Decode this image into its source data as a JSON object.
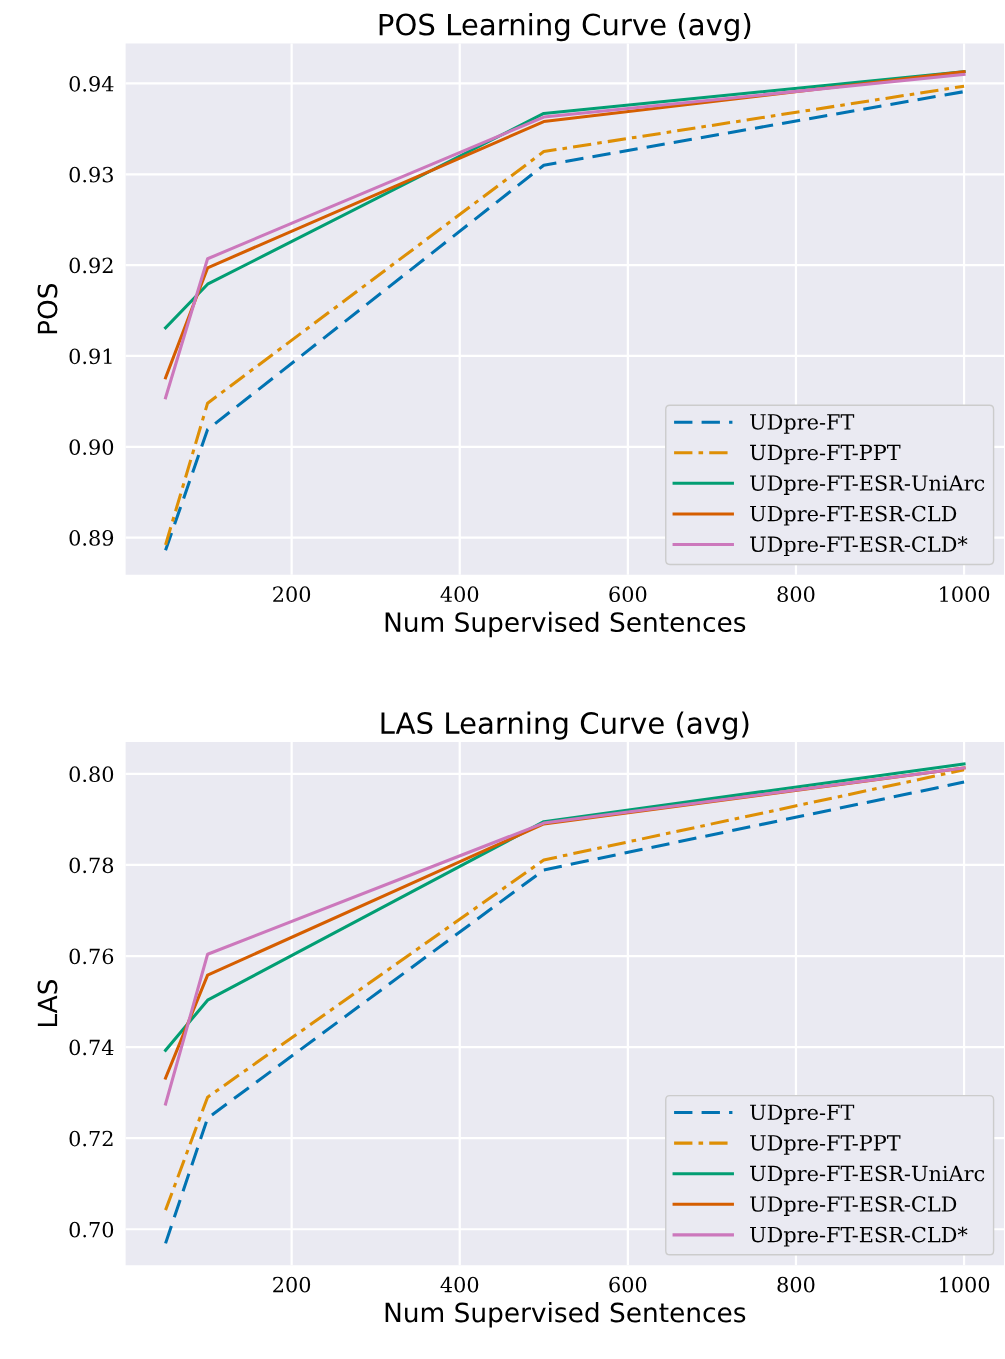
{
  "chart_data": [
    {
      "type": "line",
      "title": "POS Learning Curve (avg)",
      "xlabel": "Num Supervised Sentences",
      "ylabel": "POS",
      "x": [
        50,
        100,
        500,
        1000
      ],
      "xlim": [
        2.5,
        1047.5
      ],
      "xticks": [
        200,
        400,
        600,
        800,
        1000
      ],
      "ylim": [
        0.8859,
        0.9444
      ],
      "yticks": [
        {
          "value": 0.89,
          "label": "0.89"
        },
        {
          "value": 0.9,
          "label": "0.90"
        },
        {
          "value": 0.91,
          "label": "0.91"
        },
        {
          "value": 0.92,
          "label": "0.92"
        },
        {
          "value": 0.93,
          "label": "0.93"
        },
        {
          "value": 0.94,
          "label": "0.94"
        }
      ],
      "grid": true,
      "legend": "lower right",
      "marker": "none",
      "series": [
        {
          "name": "UDpre-FT",
          "color": "#0173b2",
          "line_style": "dashed",
          "values": [
            0.8886,
            0.9019,
            0.931,
            0.9391
          ]
        },
        {
          "name": "UDpre-FT-PPT",
          "color": "#de8f05",
          "line_style": "dashdot",
          "values": [
            0.8892,
            0.9048,
            0.9325,
            0.9397
          ]
        },
        {
          "name": "UDpre-FT-ESR-UniArc",
          "color": "#029e73",
          "line_style": "solid",
          "values": [
            0.9131,
            0.9179,
            0.9367,
            0.9413
          ]
        },
        {
          "name": "UDpre-FT-ESR-CLD",
          "color": "#d55e00",
          "line_style": "solid",
          "values": [
            0.9076,
            0.9197,
            0.9358,
            0.9413
          ]
        },
        {
          "name": "UDpre-FT-ESR-CLD*",
          "color": "#cc78bc",
          "line_style": "solid",
          "values": [
            0.9054,
            0.9207,
            0.9363,
            0.941
          ]
        }
      ]
    },
    {
      "type": "line",
      "title": "LAS Learning Curve (avg)",
      "xlabel": "Num Supervised Sentences",
      "ylabel": "LAS",
      "x": [
        50,
        100,
        500,
        1000
      ],
      "xlim": [
        2.5,
        1047.5
      ],
      "xticks": [
        200,
        400,
        600,
        800,
        1000
      ],
      "ylim": [
        0.6921,
        0.807
      ],
      "yticks": [
        {
          "value": 0.7,
          "label": "0.70"
        },
        {
          "value": 0.72,
          "label": "0.72"
        },
        {
          "value": 0.74,
          "label": "0.74"
        },
        {
          "value": 0.76,
          "label": "0.76"
        },
        {
          "value": 0.78,
          "label": "0.78"
        },
        {
          "value": 0.8,
          "label": "0.80"
        }
      ],
      "grid": true,
      "legend": "lower right",
      "marker": "none",
      "series": [
        {
          "name": "UDpre-FT",
          "color": "#0173b2",
          "line_style": "dashed",
          "values": [
            0.6969,
            0.7244,
            0.7789,
            0.7982
          ]
        },
        {
          "name": "UDpre-FT-PPT",
          "color": "#de8f05",
          "line_style": "dashdot",
          "values": [
            0.7042,
            0.729,
            0.7811,
            0.8009
          ]
        },
        {
          "name": "UDpre-FT-ESR-UniArc",
          "color": "#029e73",
          "line_style": "solid",
          "values": [
            0.7393,
            0.7503,
            0.7895,
            0.8022
          ]
        },
        {
          "name": "UDpre-FT-ESR-CLD",
          "color": "#d55e00",
          "line_style": "solid",
          "values": [
            0.7332,
            0.7558,
            0.789,
            0.8013
          ]
        },
        {
          "name": "UDpre-FT-ESR-CLD*",
          "color": "#cc78bc",
          "line_style": "solid",
          "values": [
            0.7275,
            0.7604,
            0.7892,
            0.8013
          ]
        }
      ]
    }
  ]
}
